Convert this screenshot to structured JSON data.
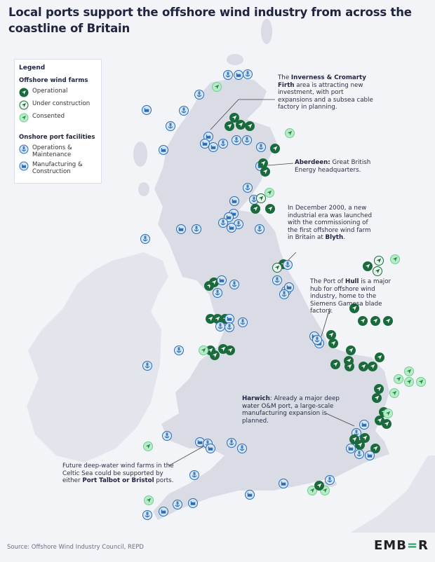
{
  "title": "Local ports support the offshore wind industry from across the coastline of Britain",
  "legend": {
    "title": "Legend",
    "wind_heading": "Offshore wind farms",
    "wind_items": [
      {
        "label": "Operational",
        "icon": "turbine-icon",
        "color": "#1a6b3c"
      },
      {
        "label": "Under construction",
        "icon": "turbine-icon",
        "color": "#e8f3ec"
      },
      {
        "label": "Consented",
        "icon": "turbine-icon",
        "color": "#b8ecc8"
      }
    ],
    "port_heading": "Onshore port facilities",
    "port_items": [
      {
        "label": "Operations & Maintenance",
        "icon": "anchor-icon",
        "color": "#d5e6f7"
      },
      {
        "label": "Manufacturing & Construction",
        "icon": "factory-icon",
        "color": "#d5e6f7"
      }
    ]
  },
  "annotations": [
    {
      "pre": "The ",
      "bold": "Inverness & Cromarty Firth",
      "post": " area is attracting new investment, with port expansions and a subsea cable factory in planning."
    },
    {
      "pre": "",
      "bold": "Aberdeen:",
      "post": " Great British Energy headquarters."
    },
    {
      "pre": "In December 2000, a new industrial era was launched with the commissioning of the first offshore wind farm in Britain at ",
      "bold": "Blyth",
      "post": "."
    },
    {
      "pre": "The Port of ",
      "bold": "Hull",
      "post": " is a major hub for offshore wind industry, home to the Siemens Gamesa blade factory."
    },
    {
      "pre": "",
      "bold": "Harwich",
      "post": ": Already a major deep water O&M port, a large-scale manufacturing expansion is planned."
    },
    {
      "pre": "Future deep-water wind farms in the Celtic Sea could be supported by either ",
      "bold": "Port Talbot or Bristol",
      "post": " ports."
    }
  ],
  "colors": {
    "sea": "#f3f4f8",
    "land": "#d9dbe5",
    "operational": "#1a6b3c",
    "under_construction": "#e8f3ec",
    "consented": "#b8ecc8",
    "port": "#2b6cb0",
    "port_fill": "#d5e6f7"
  },
  "source": "Source: Offshore Wind Industry Council, REPD",
  "logo": {
    "text": "EMBER"
  }
}
